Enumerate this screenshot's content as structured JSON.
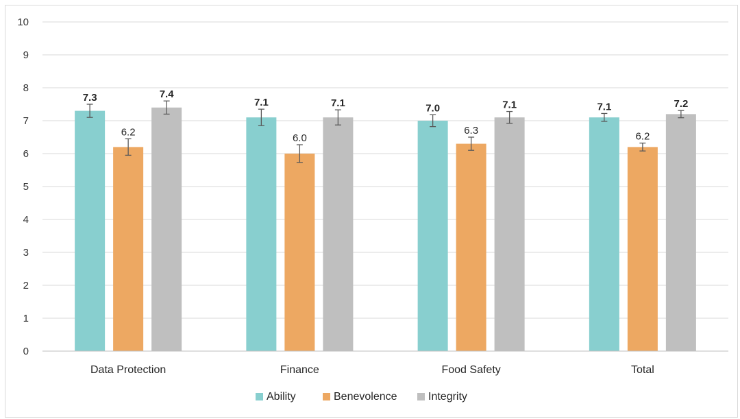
{
  "chart_data": {
    "type": "bar",
    "categories": [
      "Data Protection",
      "Finance",
      "Food Safety",
      "Total"
    ],
    "series": [
      {
        "name": "Ability",
        "values": [
          7.3,
          7.1,
          7.0,
          7.1
        ],
        "error": [
          0.2,
          0.25,
          0.18,
          0.12
        ],
        "color": "#88cfcf"
      },
      {
        "name": "Benevolence",
        "values": [
          6.2,
          6.0,
          6.3,
          6.2
        ],
        "error": [
          0.25,
          0.27,
          0.2,
          0.12
        ],
        "color": "#eda862"
      },
      {
        "name": "Integrity",
        "values": [
          7.4,
          7.1,
          7.1,
          7.2
        ],
        "error": [
          0.2,
          0.23,
          0.18,
          0.11
        ],
        "color": "#bfbfbf"
      }
    ],
    "data_labels": [
      [
        "7.3",
        "7.1",
        "7.0",
        "7.1"
      ],
      [
        "6.2",
        "6.0",
        "6.3",
        "6.2"
      ],
      [
        "7.4",
        "7.1",
        "7.1",
        "7.2"
      ]
    ],
    "ylim": [
      0,
      10
    ],
    "yticks": [
      "0",
      "1",
      "2",
      "3",
      "4",
      "5",
      "6",
      "7",
      "8",
      "9",
      "10"
    ],
    "grid": true,
    "legend_position": "bottom",
    "title": "",
    "xlabel": "",
    "ylabel": ""
  }
}
